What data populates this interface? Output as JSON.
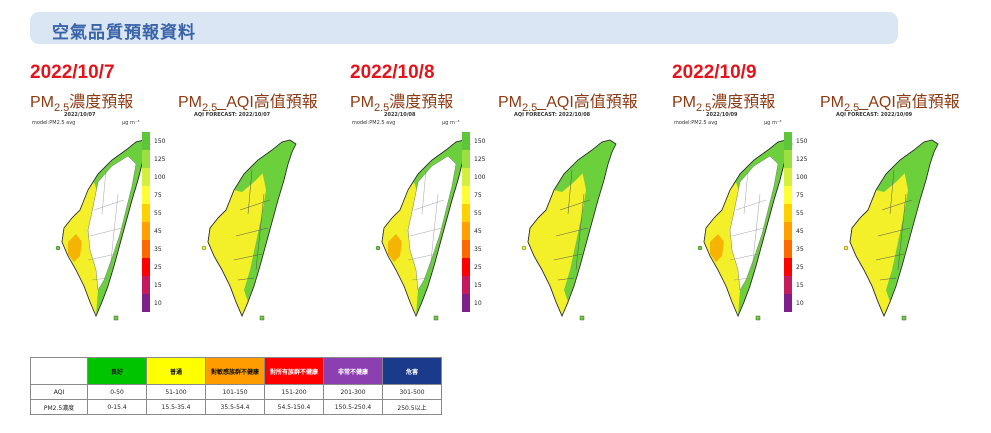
{
  "header": {
    "title": "空氣品質預報資料"
  },
  "days": [
    {
      "date": "2022/10/7",
      "pm_caption": "PM",
      "pm_sub": "2.5",
      "pm_suffix": "濃度預報",
      "aqi_caption_prefix": "PM",
      "aqi_sub": "2.5",
      "aqi_suffix": "_AQI高值預報",
      "pm_map_date": "2022/10/07",
      "aqi_map_title": "AQI FORECAST: 2022/10/07",
      "model_label": "model:PM2.5 avg",
      "unit_label": "μg m⁻³"
    },
    {
      "date": "2022/10/8",
      "pm_caption": "PM",
      "pm_sub": "2.5",
      "pm_suffix": "濃度預報",
      "aqi_caption_prefix": "PM",
      "aqi_sub": "2.5",
      "aqi_suffix": "_AQI高值預報",
      "pm_map_date": "2022/10/08",
      "aqi_map_title": "AQI FORECAST: 2022/10/08",
      "model_label": "model:PM2.5 avg",
      "unit_label": "μg m⁻³"
    },
    {
      "date": "2022/10/9",
      "pm_caption": "PM",
      "pm_sub": "2.5",
      "pm_suffix": "濃度預報",
      "aqi_caption_prefix": "PM",
      "aqi_sub": "2.5",
      "aqi_suffix": "_AQI高值預報",
      "pm_map_date": "2022/10/09",
      "aqi_map_title": "AQI FORECAST: 2022/10/09",
      "model_label": "model:PM2.5 avg",
      "unit_label": "μg m⁻³"
    }
  ],
  "scale_ticks": [
    "150",
    "125",
    "100",
    "75",
    "55",
    "45",
    "35",
    "25",
    "15",
    "10"
  ],
  "scale_colors": [
    "#7e1f8a",
    "#c41a5e",
    "#ff0000",
    "#ff6a00",
    "#ff9f00",
    "#ffd100",
    "#ffff33",
    "#d4f03c",
    "#9be040",
    "#5ec63a"
  ],
  "legend_table": {
    "headers": [
      "良好",
      "普通",
      "對敏感族群不健康",
      "對所有族群不健康",
      "非常不健康",
      "危害"
    ],
    "header_colors": [
      "#00c400",
      "#ffff00",
      "#ff9d00",
      "#ff0000",
      "#8b3fb0",
      "#1a3a8c"
    ],
    "header_text_colors": [
      "#111111",
      "#111111",
      "#111111",
      "#ffffff",
      "#ffffff",
      "#ffffff"
    ],
    "rows": [
      {
        "label": "AQI",
        "values": [
          "0-50",
          "51-100",
          "101-150",
          "151-200",
          "201-300",
          "301-500"
        ]
      },
      {
        "label": "PM2.5濃度",
        "values": [
          "0-15.4",
          "15.5-35.4",
          "35.5-54.4",
          "54.5-150.4",
          "150.5-250.4",
          "250.5以上"
        ]
      }
    ]
  },
  "map_colors": {
    "green": "#6ccf3c",
    "yellow": "#f3ef28",
    "white": "#ffffff",
    "orange": "#f5b400"
  }
}
